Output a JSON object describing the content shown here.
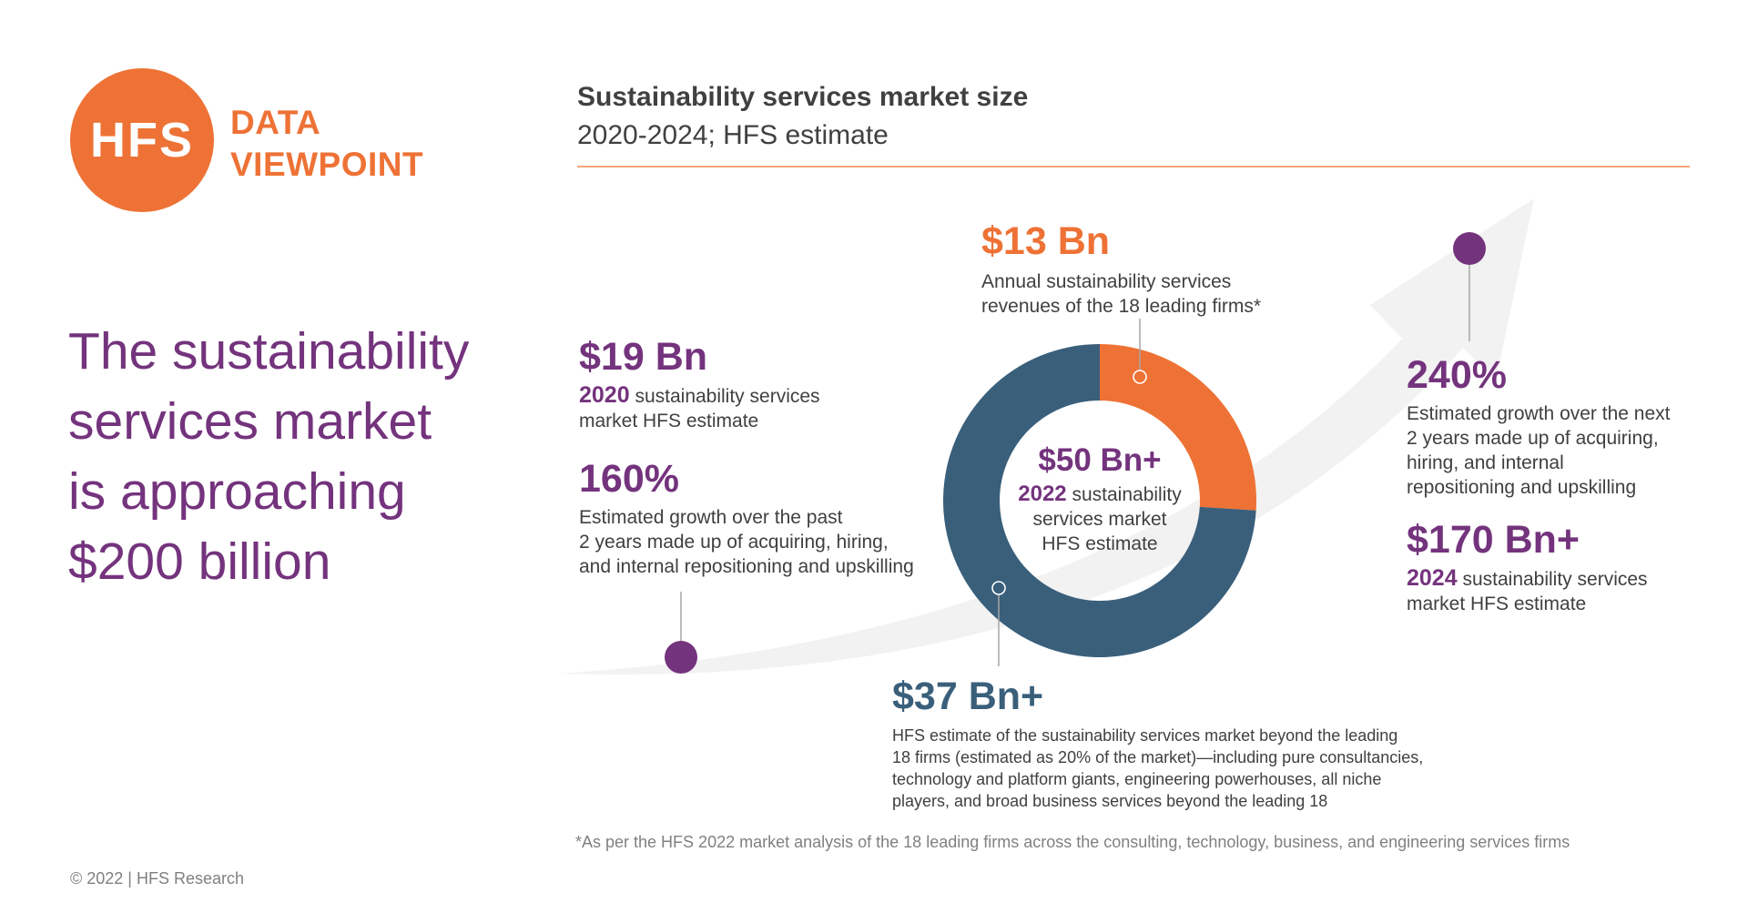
{
  "logo": {
    "mark": "HFS",
    "line1": "DATA",
    "line2": "VIEWPOINT"
  },
  "headline": [
    "The sustainability",
    "services market",
    "is approaching",
    "$200 billion"
  ],
  "chart_header": {
    "title": "Sustainability services market size",
    "subtitle": "2020-2024; HFS estimate"
  },
  "colors": {
    "orange": "#ee7235",
    "purple": "#74337d",
    "navy": "#3a5f7b",
    "arrow": "#f2f2f2",
    "rule": "#f4a576"
  },
  "chart_data": {
    "type": "pie",
    "variant": "donut",
    "total": 50,
    "unit": "$ Bn",
    "slices": [
      {
        "label": "$13 Bn",
        "value": 13,
        "color": "#ee7235"
      },
      {
        "label": "$37 Bn+",
        "value": 37,
        "color": "#3a5f7b"
      }
    ]
  },
  "annotations": {
    "y2020": {
      "value": "$19 Bn",
      "year": "2020",
      "desc_rest": " sustainability services",
      "desc_line2": "market HFS estimate"
    },
    "growth_past": {
      "value": "160%",
      "lines": [
        "Estimated growth over the past",
        "2 years made up of acquiring, hiring,",
        "and internal repositioning and upskilling"
      ]
    },
    "top_firms": {
      "value": "$13 Bn",
      "lines": [
        "Annual sustainability services",
        "revenues of the 18 leading firms*"
      ]
    },
    "center": {
      "value": "$50 Bn+",
      "year": "2022",
      "desc_rest": " sustainability",
      "line2": "services market",
      "line3": "HFS estimate"
    },
    "beyond": {
      "value": "$37 Bn+",
      "lines": [
        "HFS estimate of the sustainability services market beyond the leading",
        "18 firms (estimated as 20% of the market)—including pure consultancies,",
        "technology and platform giants, engineering powerhouses, all niche",
        "players, and broad business services beyond the leading 18"
      ]
    },
    "growth_next": {
      "value": "240%",
      "lines": [
        "Estimated growth over the next",
        "2 years made up of acquiring,",
        "hiring, and internal",
        "repositioning and upskilling"
      ]
    },
    "y2024": {
      "value": "$170 Bn+",
      "year": "2024",
      "desc_rest": " sustainability services",
      "desc_line2": "market HFS estimate"
    }
  },
  "footnote": "*As per the HFS 2022 market analysis of the 18 leading firms across the consulting, technology, business, and engineering services firms",
  "copyright": "© 2022 | HFS Research"
}
